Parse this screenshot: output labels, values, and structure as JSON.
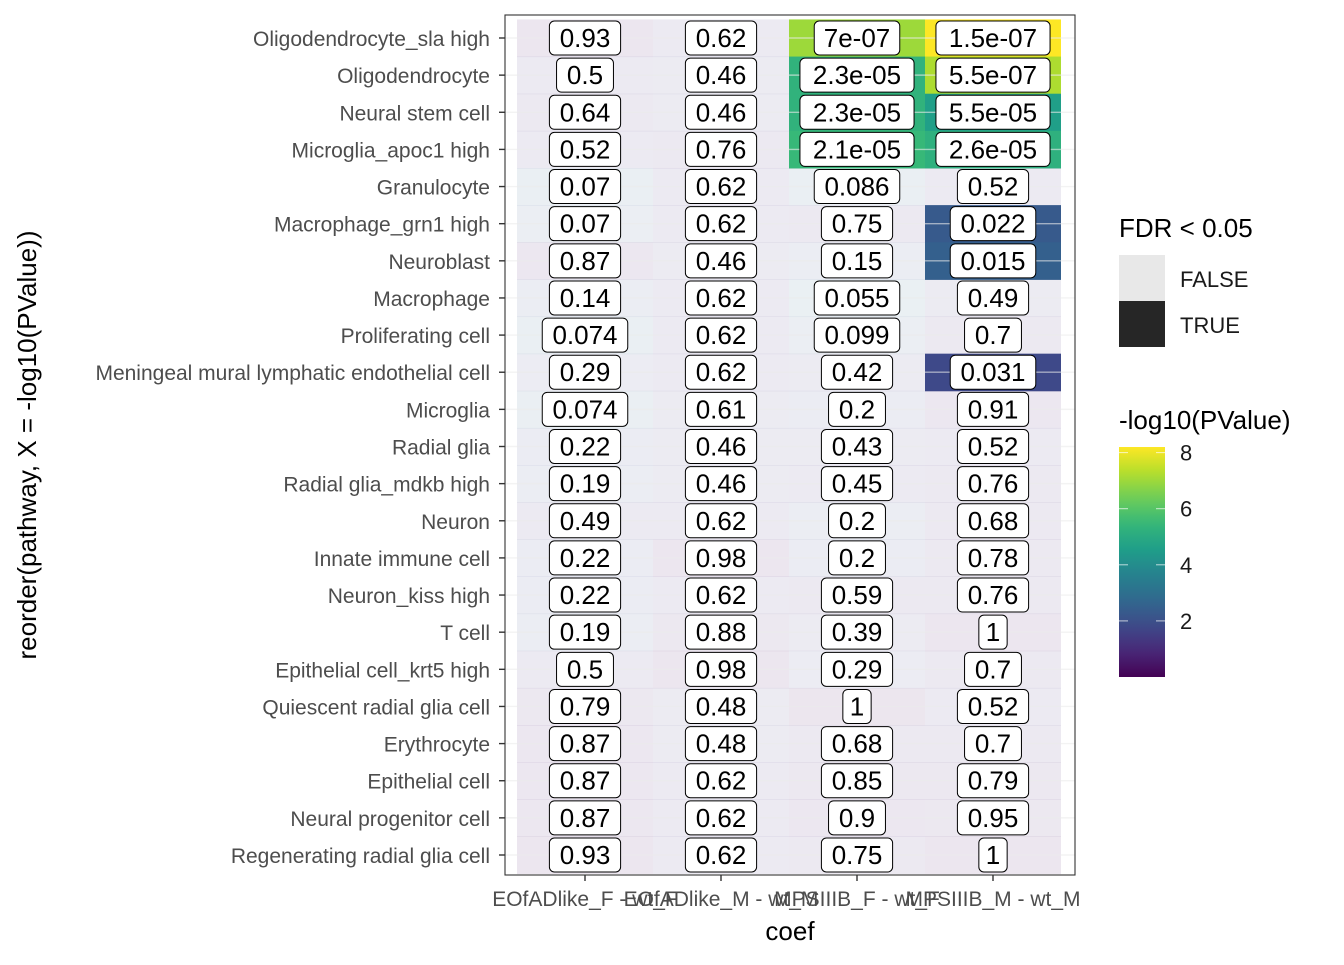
{
  "chart_data": {
    "type": "heatmap",
    "xlabel": "coef",
    "ylabel": "reorder(pathway, X = -log10(PValue))",
    "x": [
      "EOfADlike_F - wt_F",
      "EOfADlike_M - wt_M",
      "MPSIIIB_F - wt_F",
      "MPSIIIB_M - wt_M"
    ],
    "y": [
      "Oligodendrocyte_sla high",
      "Oligodendrocyte",
      "Neural stem cell",
      "Microglia_apoc1 high",
      "Granulocyte",
      "Macrophage_grn1 high",
      "Neuroblast",
      "Macrophage",
      "Proliferating cell",
      "Meningeal mural lymphatic endothelial cell",
      "Microglia",
      "Radial glia",
      "Radial glia_mdkb high",
      "Neuron",
      "Innate immune cell",
      "Neuron_kiss high",
      "T cell",
      "Epithelial cell_krt5 high",
      "Quiescent radial glia cell",
      "Erythrocyte",
      "Epithelial cell",
      "Neural progenitor cell",
      "Regenerating radial glia cell"
    ],
    "labels": [
      [
        "0.93",
        "0.62",
        "7e-07",
        "1.5e-07"
      ],
      [
        "0.5",
        "0.46",
        "2.3e-05",
        "5.5e-07"
      ],
      [
        "0.64",
        "0.46",
        "2.3e-05",
        "5.5e-05"
      ],
      [
        "0.52",
        "0.76",
        "2.1e-05",
        "2.6e-05"
      ],
      [
        "0.07",
        "0.62",
        "0.086",
        "0.52"
      ],
      [
        "0.07",
        "0.62",
        "0.75",
        "0.022"
      ],
      [
        "0.87",
        "0.46",
        "0.15",
        "0.015"
      ],
      [
        "0.14",
        "0.62",
        "0.055",
        "0.49"
      ],
      [
        "0.074",
        "0.62",
        "0.099",
        "0.7"
      ],
      [
        "0.29",
        "0.62",
        "0.42",
        "0.031"
      ],
      [
        "0.074",
        "0.61",
        "0.2",
        "0.91"
      ],
      [
        "0.22",
        "0.46",
        "0.43",
        "0.52"
      ],
      [
        "0.19",
        "0.46",
        "0.45",
        "0.76"
      ],
      [
        "0.49",
        "0.62",
        "0.2",
        "0.68"
      ],
      [
        "0.22",
        "0.98",
        "0.2",
        "0.78"
      ],
      [
        "0.22",
        "0.62",
        "0.59",
        "0.76"
      ],
      [
        "0.19",
        "0.88",
        "0.39",
        "1"
      ],
      [
        "0.5",
        "0.98",
        "0.29",
        "0.7"
      ],
      [
        "0.79",
        "0.48",
        "1",
        "0.52"
      ],
      [
        "0.87",
        "0.48",
        "0.68",
        "0.7"
      ],
      [
        "0.87",
        "0.62",
        "0.85",
        "0.79"
      ],
      [
        "0.87",
        "0.62",
        "0.9",
        "0.95"
      ],
      [
        "0.93",
        "0.62",
        "0.75",
        "1"
      ]
    ],
    "neg_log10_pvalue": [
      [
        0.3,
        1.2,
        7.0,
        8.2
      ],
      [
        1.2,
        1.5,
        5.3,
        7.2
      ],
      [
        0.9,
        1.5,
        5.3,
        4.6
      ],
      [
        1.1,
        0.8,
        5.5,
        5.2
      ],
      [
        2.5,
        1.2,
        2.6,
        1.2
      ],
      [
        2.4,
        1.2,
        0.9,
        2.3
      ],
      [
        0.5,
        1.5,
        2.0,
        2.5
      ],
      [
        2.0,
        1.2,
        2.7,
        1.3
      ],
      [
        2.6,
        1.2,
        2.4,
        1.0
      ],
      [
        1.6,
        1.2,
        1.3,
        1.8
      ],
      [
        2.6,
        1.3,
        1.8,
        0.5
      ],
      [
        1.8,
        1.5,
        1.3,
        1.1
      ],
      [
        1.9,
        1.5,
        1.2,
        0.8
      ],
      [
        1.2,
        1.2,
        1.9,
        0.9
      ],
      [
        1.8,
        0.3,
        1.8,
        0.8
      ],
      [
        1.7,
        1.1,
        1.0,
        0.8
      ],
      [
        1.9,
        0.6,
        1.4,
        0.3
      ],
      [
        1.2,
        0.3,
        1.6,
        0.9
      ],
      [
        0.7,
        1.4,
        0.2,
        1.1
      ],
      [
        0.5,
        1.4,
        0.8,
        0.9
      ],
      [
        0.5,
        1.1,
        0.6,
        0.7
      ],
      [
        0.5,
        1.1,
        0.5,
        0.6
      ],
      [
        0.3,
        1.1,
        0.8,
        0.3
      ]
    ],
    "fdr_significant": [
      [
        false,
        false,
        true,
        true
      ],
      [
        false,
        false,
        true,
        true
      ],
      [
        false,
        false,
        true,
        true
      ],
      [
        false,
        false,
        true,
        true
      ],
      [
        false,
        false,
        false,
        false
      ],
      [
        false,
        false,
        false,
        true
      ],
      [
        false,
        false,
        false,
        true
      ],
      [
        false,
        false,
        false,
        false
      ],
      [
        false,
        false,
        false,
        false
      ],
      [
        false,
        false,
        false,
        true
      ],
      [
        false,
        false,
        false,
        false
      ],
      [
        false,
        false,
        false,
        false
      ],
      [
        false,
        false,
        false,
        false
      ],
      [
        false,
        false,
        false,
        false
      ],
      [
        false,
        false,
        false,
        false
      ],
      [
        false,
        false,
        false,
        false
      ],
      [
        false,
        false,
        false,
        false
      ],
      [
        false,
        false,
        false,
        false
      ],
      [
        false,
        false,
        false,
        false
      ],
      [
        false,
        false,
        false,
        false
      ],
      [
        false,
        false,
        false,
        false
      ],
      [
        false,
        false,
        false,
        false
      ],
      [
        false,
        false,
        false,
        false
      ]
    ],
    "colorscale": "viridis",
    "color_range": [
      0,
      8.2
    ],
    "legend_alpha": {
      "title": "FDR < 0.05",
      "entries": [
        "FALSE",
        "TRUE"
      ],
      "colors": [
        "#e8e8e8",
        "#262626"
      ]
    },
    "legend_color": {
      "title": "-log10(PValue)",
      "ticks": [
        2,
        4,
        6,
        8
      ],
      "tick_labels": [
        "2",
        "4",
        "6",
        "8"
      ]
    },
    "grid": true,
    "legend_placement": "right"
  }
}
